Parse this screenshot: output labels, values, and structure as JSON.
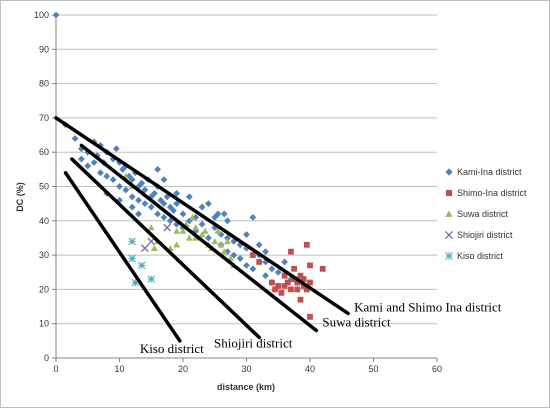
{
  "chart_data": {
    "type": "scatter",
    "xlabel": "distance (km)",
    "ylabel": "DC (%)",
    "xlim": [
      0,
      60
    ],
    "ylim": [
      0,
      100
    ],
    "x_ticks": [
      0,
      10,
      20,
      30,
      40,
      50,
      60
    ],
    "y_ticks": [
      0,
      10,
      20,
      30,
      40,
      50,
      60,
      70,
      80,
      90,
      100
    ],
    "grid": "horizontal",
    "legend_position": "right",
    "series": [
      {
        "name": "Kami-Ina district",
        "color": "#4f81bd",
        "marker": "diamond",
        "points": [
          [
            0,
            100
          ],
          [
            1.5,
            68
          ],
          [
            3,
            64
          ],
          [
            4,
            61
          ],
          [
            5,
            60
          ],
          [
            6,
            63
          ],
          [
            6.5,
            59
          ],
          [
            7,
            62
          ],
          [
            7.5,
            57
          ],
          [
            8,
            60
          ],
          [
            9,
            58
          ],
          [
            9.5,
            61
          ],
          [
            10,
            57
          ],
          [
            10.5,
            55
          ],
          [
            11,
            56
          ],
          [
            11.5,
            53
          ],
          [
            12,
            52
          ],
          [
            12.5,
            54
          ],
          [
            13,
            50
          ],
          [
            13.5,
            51
          ],
          [
            14,
            49
          ],
          [
            14.5,
            52
          ],
          [
            15,
            47
          ],
          [
            15.5,
            48
          ],
          [
            16,
            50
          ],
          [
            16.5,
            46
          ],
          [
            17,
            45
          ],
          [
            17.5,
            47
          ],
          [
            18,
            44
          ],
          [
            18.5,
            43
          ],
          [
            19,
            45
          ],
          [
            20,
            42
          ],
          [
            21,
            40
          ],
          [
            22,
            41
          ],
          [
            23,
            39
          ],
          [
            24,
            45
          ],
          [
            25,
            38
          ],
          [
            25.5,
            42
          ],
          [
            26,
            36
          ],
          [
            26.5,
            42
          ],
          [
            27,
            35
          ],
          [
            28,
            34
          ],
          [
            29,
            33
          ],
          [
            30,
            32
          ],
          [
            31,
            41
          ],
          [
            32,
            30
          ],
          [
            33,
            28
          ],
          [
            34,
            26
          ],
          [
            35,
            25
          ],
          [
            4,
            58
          ],
          [
            5,
            56
          ],
          [
            6,
            57
          ],
          [
            7,
            54
          ],
          [
            8,
            53
          ],
          [
            9,
            52
          ],
          [
            10,
            50
          ],
          [
            11,
            49
          ],
          [
            12,
            47
          ],
          [
            13,
            46
          ],
          [
            14,
            45
          ],
          [
            15,
            44
          ],
          [
            16,
            42
          ],
          [
            17,
            41
          ],
          [
            18,
            40
          ],
          [
            19,
            39
          ],
          [
            20,
            38
          ],
          [
            22,
            37
          ],
          [
            24,
            35
          ],
          [
            26,
            33
          ],
          [
            27,
            31
          ],
          [
            28,
            30
          ],
          [
            29,
            29
          ],
          [
            30,
            27
          ],
          [
            31,
            26
          ],
          [
            33,
            24
          ],
          [
            34,
            22
          ],
          [
            35,
            21
          ],
          [
            36,
            28
          ],
          [
            37,
            23
          ],
          [
            38,
            22
          ],
          [
            8,
            48
          ],
          [
            10,
            46
          ],
          [
            12,
            44
          ],
          [
            13,
            42
          ],
          [
            16,
            55
          ],
          [
            17,
            52
          ],
          [
            19,
            48
          ],
          [
            21,
            47
          ],
          [
            23,
            44
          ],
          [
            25,
            41
          ],
          [
            27,
            40
          ],
          [
            30,
            36
          ],
          [
            32,
            33
          ],
          [
            33,
            31
          ]
        ]
      },
      {
        "name": "Shimo-Ina district",
        "color": "#c0504d",
        "marker": "square",
        "points": [
          [
            31,
            30
          ],
          [
            32,
            28
          ],
          [
            34,
            22
          ],
          [
            34.5,
            20
          ],
          [
            35,
            21
          ],
          [
            35.5,
            19
          ],
          [
            36,
            21
          ],
          [
            36,
            24
          ],
          [
            36.5,
            22
          ],
          [
            37,
            31
          ],
          [
            37,
            20
          ],
          [
            37.5,
            23
          ],
          [
            37.5,
            26
          ],
          [
            38,
            22
          ],
          [
            38,
            20
          ],
          [
            38.5,
            24
          ],
          [
            38.5,
            17
          ],
          [
            39,
            23
          ],
          [
            39,
            21
          ],
          [
            39.5,
            33
          ],
          [
            39.5,
            20
          ],
          [
            40,
            27
          ],
          [
            40,
            22
          ],
          [
            40,
            12
          ],
          [
            42,
            26
          ]
        ]
      },
      {
        "name": "Suwa district",
        "color": "#9bbb59",
        "marker": "triangle",
        "points": [
          [
            11,
            53
          ],
          [
            12,
            50
          ],
          [
            15,
            38
          ],
          [
            15.5,
            32
          ],
          [
            16,
            34
          ],
          [
            18,
            32
          ],
          [
            19,
            33
          ],
          [
            19,
            37
          ],
          [
            20,
            37
          ],
          [
            20.5,
            39
          ],
          [
            21,
            35
          ],
          [
            21.5,
            41
          ],
          [
            22,
            38
          ],
          [
            22,
            35
          ],
          [
            23,
            36
          ],
          [
            23.5,
            37
          ],
          [
            24,
            33
          ],
          [
            24.5,
            32
          ],
          [
            25,
            34
          ],
          [
            25.5,
            37
          ],
          [
            26,
            33
          ],
          [
            26.5,
            31
          ],
          [
            27,
            34
          ],
          [
            27.5,
            29
          ],
          [
            28,
            27
          ]
        ]
      },
      {
        "name": "Shiojiri district",
        "color": "#8064a2",
        "marker": "x",
        "points": [
          [
            14,
            32
          ],
          [
            15,
            34
          ],
          [
            17.5,
            38
          ]
        ]
      },
      {
        "name": "Kiso district",
        "color": "#4bacc6",
        "marker": "asterisk",
        "points": [
          [
            12,
            34
          ],
          [
            12,
            29
          ],
          [
            12.5,
            22
          ],
          [
            13.5,
            27
          ],
          [
            15,
            23
          ]
        ]
      }
    ],
    "trend_lines": [
      {
        "label": "Kami and Shimo Ina district",
        "from": [
          0,
          70
        ],
        "to": [
          46,
          13
        ]
      },
      {
        "label": "Suwa district",
        "from": [
          4,
          62
        ],
        "to": [
          41,
          8
        ]
      },
      {
        "label": "Shiojiri district",
        "from": [
          2.5,
          58
        ],
        "to": [
          32,
          6
        ]
      },
      {
        "label": "Kiso district",
        "from": [
          1.5,
          54
        ],
        "to": [
          19.5,
          5
        ]
      }
    ]
  }
}
